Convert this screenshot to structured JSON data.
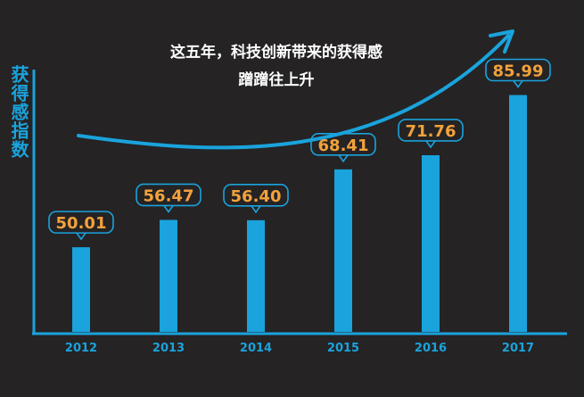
{
  "chart_data": {
    "type": "bar",
    "title": "这五年，科技创新带来的获得感",
    "subtitle": "蹭蹭往上升",
    "xlabel": "",
    "ylabel": "获得感指数",
    "categories": [
      "2012",
      "2013",
      "2014",
      "2015",
      "2016",
      "2017"
    ],
    "values": [
      50.01,
      56.47,
      56.4,
      68.41,
      71.76,
      85.99
    ],
    "labels": [
      "50.01",
      "56.47",
      "56.40",
      "68.41",
      "71.76",
      "85.99"
    ],
    "ylim": [
      30,
      92
    ],
    "grid": false,
    "legend": "none"
  },
  "colors": {
    "background": "#252324",
    "bar": "#1aa3dc",
    "axis": "#1aa3dc",
    "value_label": "#f2a23c",
    "label_box_border": "#1aa3dc",
    "title": "#ffffff",
    "tick_label": "#1aa3dc"
  }
}
